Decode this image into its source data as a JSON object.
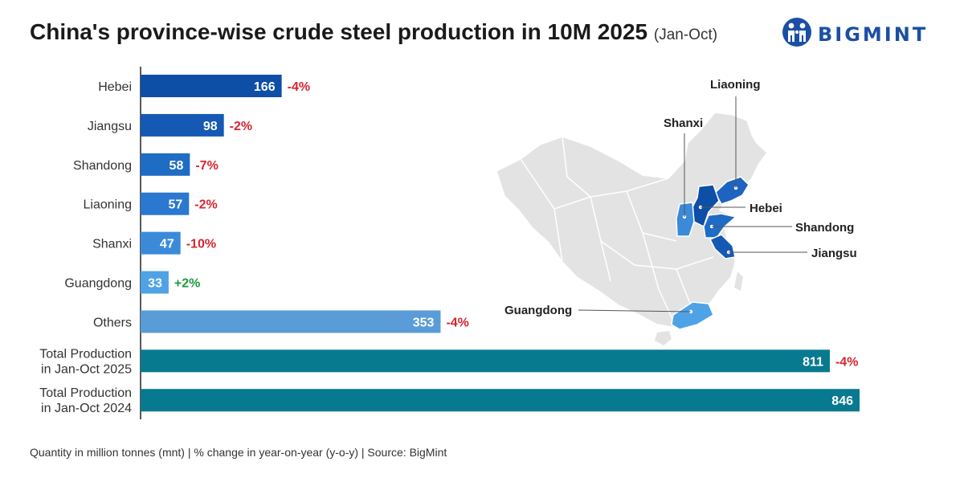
{
  "header": {
    "title": "China's province-wise crude steel production in 10M 2025",
    "subtitle": "(Jan-Oct)"
  },
  "brand": {
    "name": "BIGMINT",
    "color": "#1b4fa3"
  },
  "footer": {
    "note": "Quantity in million tonnes (mnt) | % change in year-on-year (y-o-y) | Source: BigMint"
  },
  "colors": {
    "negative": "#d7262f",
    "positive": "#1f9a3c",
    "map_base": "#e3e3e3",
    "map_border": "#ffffff"
  },
  "chart_data": {
    "type": "bar",
    "orientation": "horizontal",
    "title": "China's province-wise crude steel production in 10M 2025 (Jan-Oct)",
    "unit": "mnt",
    "xlim": [
      0,
      846
    ],
    "categories": [
      "Hebei",
      "Jiangsu",
      "Shandong",
      "Liaoning",
      "Shanxi",
      "Guangdong",
      "Others",
      "Total Production in Jan-Oct 2025",
      "Total Production in Jan-Oct 2024"
    ],
    "label_lines": [
      [
        "Hebei"
      ],
      [
        "Jiangsu"
      ],
      [
        "Shandong"
      ],
      [
        "Liaoning"
      ],
      [
        "Shanxi"
      ],
      [
        "Guangdong"
      ],
      [
        "Others"
      ],
      [
        "Total Production",
        "in Jan-Oct 2025"
      ],
      [
        "Total Production",
        "in Jan-Oct 2024"
      ]
    ],
    "values": [
      166,
      98,
      58,
      57,
      47,
      33,
      353,
      811,
      846
    ],
    "yoy_change": [
      "-4%",
      "-2%",
      "-7%",
      "-2%",
      "-10%",
      "+2%",
      "-4%",
      "-4%",
      ""
    ],
    "bar_colors": [
      "#0d4ea6",
      "#1559b4",
      "#1f6cc4",
      "#2a78cf",
      "#3b8ad9",
      "#4ea3e6",
      "#5a9cd8",
      "#087a90",
      "#087a90"
    ],
    "map_highlights": [
      {
        "province": "Liaoning",
        "color": "#1f63c0"
      },
      {
        "province": "Shanxi",
        "color": "#3b8ad9"
      },
      {
        "province": "Hebei",
        "color": "#0d4ea6"
      },
      {
        "province": "Shandong",
        "color": "#1f6cc4"
      },
      {
        "province": "Jiangsu",
        "color": "#1559b4"
      },
      {
        "province": "Guangdong",
        "color": "#4ea3e6"
      }
    ]
  }
}
